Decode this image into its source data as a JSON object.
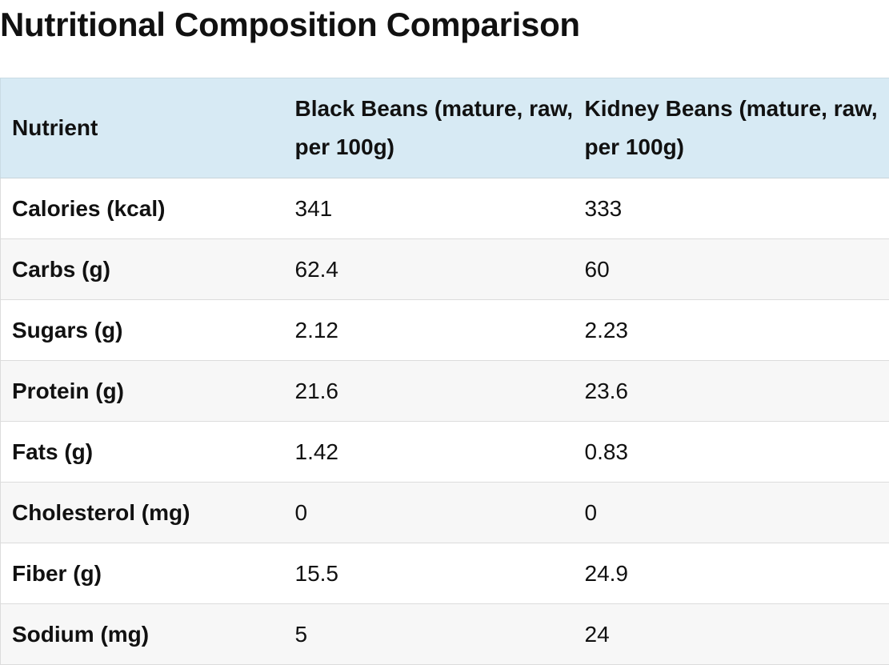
{
  "page": {
    "title": "Nutritional Composition Comparison"
  },
  "table": {
    "headers": [
      "Nutrient",
      "Black Beans (mature, raw, per 100g)",
      "Kidney Beans (mature, raw, per 100g)"
    ],
    "rows": [
      {
        "nutrient": "Calories (kcal)",
        "black": "341",
        "kidney": "333"
      },
      {
        "nutrient": "Carbs (g)",
        "black": "62.4",
        "kidney": "60"
      },
      {
        "nutrient": "Sugars (g)",
        "black": "2.12",
        "kidney": "2.23"
      },
      {
        "nutrient": "Protein (g)",
        "black": "21.6",
        "kidney": "23.6"
      },
      {
        "nutrient": "Fats (g)",
        "black": "1.42",
        "kidney": "0.83"
      },
      {
        "nutrient": "Cholesterol (mg)",
        "black": "0",
        "kidney": "0"
      },
      {
        "nutrient": "Fiber (g)",
        "black": "15.5",
        "kidney": "24.9"
      },
      {
        "nutrient": "Sodium (mg)",
        "black": "5",
        "kidney": "24"
      }
    ]
  },
  "colors": {
    "header_bg": "#d7eaf4",
    "row_alt_bg": "#f7f7f7",
    "border": "#dcdcdc"
  }
}
